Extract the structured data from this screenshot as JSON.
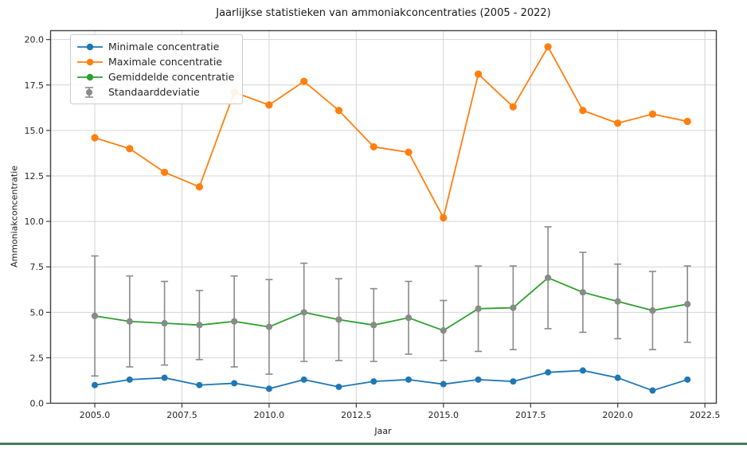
{
  "window": {
    "bottom_border_color": "#467c5b"
  },
  "chart_data": {
    "type": "line",
    "title": "Jaarlijkse statistieken van ammoniakconcentraties (2005 - 2022)",
    "xlabel": "Jaar",
    "ylabel": "Ammoniakconcentratie",
    "grid": true,
    "legend_position": "upper left",
    "x": [
      2005,
      2006,
      2007,
      2008,
      2009,
      2010,
      2011,
      2012,
      2013,
      2014,
      2015,
      2016,
      2017,
      2018,
      2019,
      2020,
      2021,
      2022
    ],
    "series": [
      {
        "name": "Minimale concentratie",
        "color": "#1f77b4",
        "style": "line-marker",
        "values": [
          1.0,
          1.3,
          1.4,
          1.0,
          1.1,
          0.8,
          1.3,
          0.9,
          1.2,
          1.3,
          1.05,
          1.3,
          1.2,
          1.7,
          1.8,
          1.4,
          0.7,
          1.3
        ]
      },
      {
        "name": "Maximale concentratie",
        "color": "#ff7f0e",
        "style": "line-marker",
        "values": [
          14.6,
          14.0,
          12.7,
          11.9,
          17.1,
          16.4,
          17.7,
          16.1,
          14.1,
          13.8,
          10.2,
          18.1,
          16.3,
          19.6,
          16.1,
          15.4,
          15.9,
          15.5
        ]
      },
      {
        "name": "Gemiddelde concentratie",
        "color": "#2ca02c",
        "style": "line-marker",
        "values": [
          4.8,
          4.5,
          4.4,
          4.3,
          4.5,
          4.2,
          5.0,
          4.6,
          4.3,
          4.7,
          4.0,
          5.2,
          5.25,
          6.9,
          6.1,
          5.6,
          5.1,
          5.45
        ]
      },
      {
        "name": "Standaarddeviatie",
        "color": "#8a8a8a",
        "style": "errorbar",
        "attached_to": "Gemiddelde concentratie",
        "values": [
          3.3,
          2.5,
          2.3,
          1.9,
          2.5,
          2.6,
          2.7,
          2.25,
          2.0,
          2.0,
          1.65,
          2.35,
          2.3,
          2.8,
          2.2,
          2.05,
          2.15,
          2.1
        ]
      }
    ],
    "x_ticks": [
      2005.0,
      2007.5,
      2010.0,
      2012.5,
      2015.0,
      2017.5,
      2020.0,
      2022.5
    ],
    "y_ticks": [
      0.0,
      2.5,
      5.0,
      7.5,
      10.0,
      12.5,
      15.0,
      17.5,
      20.0
    ],
    "xlim": [
      2003.72,
      2022.84
    ],
    "ylim": [
      -0.02,
      20.51
    ],
    "grid_color": "#d4d4d4",
    "spine_color": "#404040",
    "tick_label_color": "#262626"
  }
}
